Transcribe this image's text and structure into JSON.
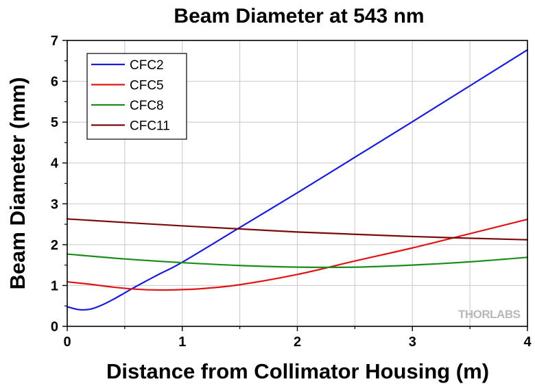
{
  "chart_data": {
    "type": "line",
    "title": "Beam Diameter at 543 nm",
    "xlabel": "Distance from Collimator Housing (m)",
    "ylabel": "Beam Diameter (mm)",
    "xlim": [
      0,
      4
    ],
    "ylim": [
      0,
      7
    ],
    "x_ticks": [
      "0",
      "1",
      "2",
      "3",
      "4"
    ],
    "y_ticks": [
      "0",
      "1",
      "2",
      "3",
      "4",
      "5",
      "6",
      "7"
    ],
    "grid": true,
    "legend_position": "top-left",
    "watermark": "THORLABS",
    "series": [
      {
        "name": "CFC2",
        "color": "#1a1adc",
        "x": [
          0,
          0.1,
          0.2,
          0.3,
          0.4,
          0.5,
          0.6,
          0.8,
          1.0,
          1.5,
          2.0,
          2.5,
          3.0,
          3.5,
          4.0
        ],
        "y": [
          0.48,
          0.41,
          0.42,
          0.52,
          0.66,
          0.82,
          0.98,
          1.28,
          1.57,
          2.42,
          3.27,
          4.14,
          5.01,
          5.89,
          6.77
        ]
      },
      {
        "name": "CFC5",
        "color": "#e01414",
        "x": [
          0,
          0.2,
          0.4,
          0.6,
          0.8,
          1.0,
          1.2,
          1.5,
          2.0,
          2.5,
          3.0,
          3.5,
          4.0
        ],
        "y": [
          1.09,
          1.03,
          0.96,
          0.91,
          0.89,
          0.9,
          0.93,
          1.02,
          1.27,
          1.6,
          1.92,
          2.27,
          2.62
        ]
      },
      {
        "name": "CFC8",
        "color": "#1a8c1a",
        "x": [
          0,
          0.5,
          1.0,
          1.5,
          2.0,
          2.5,
          3.0,
          3.5,
          4.0
        ],
        "y": [
          1.77,
          1.65,
          1.56,
          1.49,
          1.45,
          1.45,
          1.5,
          1.58,
          1.69
        ]
      },
      {
        "name": "CFC11",
        "color": "#7a0a0a",
        "x": [
          0,
          1.0,
          2.0,
          3.0,
          4.0
        ],
        "y": [
          2.63,
          2.46,
          2.31,
          2.2,
          2.12
        ]
      }
    ]
  }
}
